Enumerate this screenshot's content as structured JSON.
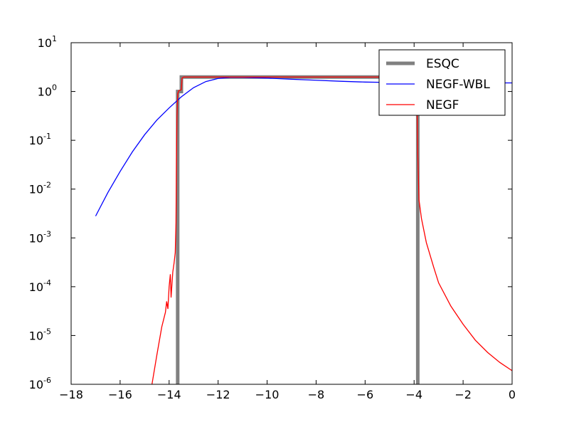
{
  "chart_data": {
    "type": "line",
    "title": "",
    "xlabel": "",
    "ylabel": "",
    "xlim": [
      -18,
      0
    ],
    "ylim": [
      1e-06,
      10
    ],
    "yscale": "log",
    "grid": false,
    "legend_position": "top-right",
    "x_ticks": [
      -18,
      -16,
      -14,
      -12,
      -10,
      -8,
      -6,
      -4,
      -2,
      0
    ],
    "x_tick_labels": [
      "−18",
      "−16",
      "−14",
      "−12",
      "−10",
      "−8",
      "−6",
      "−4",
      "−2",
      "0"
    ],
    "y_ticks": [
      {
        "value": 1e-06,
        "base": "10",
        "exp": "-6"
      },
      {
        "value": 1e-05,
        "base": "10",
        "exp": "-5"
      },
      {
        "value": 0.0001,
        "base": "10",
        "exp": "-4"
      },
      {
        "value": 0.001,
        "base": "10",
        "exp": "-3"
      },
      {
        "value": 0.01,
        "base": "10",
        "exp": "-2"
      },
      {
        "value": 0.1,
        "base": "10",
        "exp": "-1"
      },
      {
        "value": 1,
        "base": "10",
        "exp": "0"
      },
      {
        "value": 10,
        "base": "10",
        "exp": "1"
      }
    ],
    "series": [
      {
        "name": "ESQC",
        "color": "#808080",
        "style": "thick",
        "points": [
          [
            -13.65,
            1e-07
          ],
          [
            -13.65,
            1.0
          ],
          [
            -13.5,
            1.0
          ],
          [
            -13.5,
            1.98
          ],
          [
            -6.0,
            1.98
          ],
          [
            -3.85,
            1.98
          ],
          [
            -3.85,
            1e-07
          ]
        ]
      },
      {
        "name": "NEGF-WBL",
        "color": "#0000ff",
        "style": "thin",
        "points": [
          [
            -17.0,
            0.0028
          ],
          [
            -16.5,
            0.0085
          ],
          [
            -16.0,
            0.023
          ],
          [
            -15.5,
            0.058
          ],
          [
            -15.0,
            0.13
          ],
          [
            -14.5,
            0.26
          ],
          [
            -14.0,
            0.46
          ],
          [
            -13.5,
            0.78
          ],
          [
            -13.0,
            1.2
          ],
          [
            -12.5,
            1.6
          ],
          [
            -12.0,
            1.85
          ],
          [
            -11.5,
            1.95
          ],
          [
            -11.0,
            1.95
          ],
          [
            -10.0,
            1.88
          ],
          [
            -9.0,
            1.78
          ],
          [
            -8.0,
            1.7
          ],
          [
            -7.0,
            1.62
          ],
          [
            -6.0,
            1.56
          ],
          [
            -5.0,
            1.53
          ],
          [
            -4.0,
            1.5
          ],
          [
            -3.0,
            1.5
          ],
          [
            -2.0,
            1.5
          ],
          [
            -1.0,
            1.5
          ],
          [
            0.0,
            1.5
          ]
        ]
      },
      {
        "name": "NEGF",
        "color": "#ff0000",
        "style": "thin",
        "points": [
          [
            -14.7,
            1e-06
          ],
          [
            -14.5,
            4e-06
          ],
          [
            -14.3,
            1.5e-05
          ],
          [
            -14.15,
            3e-05
          ],
          [
            -14.1,
            5e-05
          ],
          [
            -14.05,
            3.5e-05
          ],
          [
            -14.0,
            0.0001
          ],
          [
            -13.95,
            0.00018
          ],
          [
            -13.92,
            6e-05
          ],
          [
            -13.85,
            0.0002
          ],
          [
            -13.8,
            0.0003
          ],
          [
            -13.75,
            0.0005
          ],
          [
            -13.72,
            0.002
          ],
          [
            -13.7,
            0.04
          ],
          [
            -13.68,
            0.3
          ],
          [
            -13.65,
            0.9
          ],
          [
            -13.6,
            1.05
          ],
          [
            -13.55,
            1.05
          ],
          [
            -13.5,
            1.1
          ],
          [
            -13.47,
            1.9
          ],
          [
            -13.4,
            1.98
          ],
          [
            -8.0,
            1.98
          ],
          [
            -3.9,
            1.98
          ],
          [
            -3.88,
            0.5
          ],
          [
            -3.85,
            0.05
          ],
          [
            -3.8,
            0.006
          ],
          [
            -3.7,
            0.0025
          ],
          [
            -3.5,
            0.0008
          ],
          [
            -3.2,
            0.00025
          ],
          [
            -3.0,
            0.00012
          ],
          [
            -2.5,
            4e-05
          ],
          [
            -2.0,
            1.7e-05
          ],
          [
            -1.5,
            8e-06
          ],
          [
            -1.0,
            4.5e-06
          ],
          [
            -0.5,
            2.8e-06
          ],
          [
            0.0,
            1.9e-06
          ]
        ]
      }
    ]
  }
}
